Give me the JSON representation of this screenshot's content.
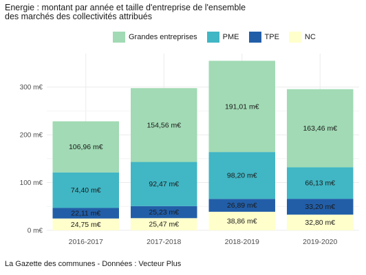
{
  "title_line1": "Energie : montant par année et taille d'entreprise de l'ensemble",
  "title_line2": "des marchés des collectivités attribués",
  "caption": "La Gazette des communes - Données : Vecteur Plus",
  "chart_data": {
    "type": "bar",
    "stacked": true,
    "categories": [
      "2016-2017",
      "2017-2018",
      "2018-2019",
      "2019-2020"
    ],
    "series": [
      {
        "name": "NC",
        "color": "#ffffcc",
        "values": [
          24.75,
          25.47,
          38.86,
          32.8
        ],
        "labels": [
          "24,75 m€",
          "25,47 m€",
          "38,86 m€",
          "32,80 m€"
        ]
      },
      {
        "name": "TPE",
        "color": "#225ea8",
        "values": [
          22.11,
          25.23,
          26.89,
          33.2
        ],
        "labels": [
          "22,11 m€",
          "25,23 m€",
          "26,89 m€",
          "33,20 m€"
        ]
      },
      {
        "name": "PME",
        "color": "#41b6c4",
        "values": [
          74.4,
          92.47,
          98.2,
          66.13
        ],
        "labels": [
          "74,40 m€",
          "92,47 m€",
          "98,20 m€",
          "66,13 m€"
        ]
      },
      {
        "name": "Grandes entreprises",
        "color": "#a1dab4",
        "values": [
          106.96,
          154.56,
          191.01,
          163.46
        ],
        "labels": [
          "106,96 m€",
          "154,56 m€",
          "191,01 m€",
          "163,46 m€"
        ]
      }
    ],
    "legend_order": [
      "Grandes entreprises",
      "PME",
      "TPE",
      "NC"
    ],
    "yticks": [
      0,
      100,
      200,
      300
    ],
    "ytick_labels": [
      "0 m€",
      "100 m€",
      "200 m€",
      "300 m€"
    ],
    "ylim": [
      0,
      370
    ],
    "legend_position": "top",
    "grid": true
  }
}
